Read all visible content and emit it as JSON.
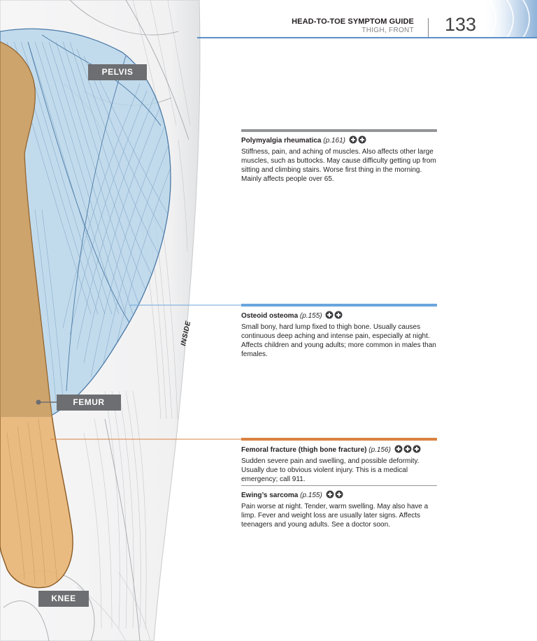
{
  "header": {
    "guide_title": "HEAD-TO-TOE SYMPTOM GUIDE",
    "section": "THIGH, FRONT",
    "page_number": "133"
  },
  "labels": {
    "pelvis": "PELVIS",
    "femur": "FEMUR",
    "knee": "KNEE",
    "inside": "INSIDE"
  },
  "colors": {
    "muscle_region": "#b8d6ea",
    "bone_region": "#e8b77a",
    "polymyalgia_bar": "#939598",
    "osteoid_bar": "#6aa6dc",
    "fracture_bar": "#d9813f",
    "header_rule": "#5b8fc6"
  },
  "entries": [
    {
      "title": "Polymyalgia rheumatica",
      "ref": "(p.161)",
      "urgency": 2,
      "text": "Stiffness, pain, and aching of muscles. Also affects other large muscles, such as buttocks. May cause difficulty getting up from sitting and climbing stairs. Worse first thing in the morning. Mainly affects people over 65."
    },
    {
      "title": "Osteoid osteoma",
      "ref": "(p.155)",
      "urgency": 2,
      "text": "Small bony, hard lump fixed to thigh bone. Usually causes continuous deep aching and intense pain, especially at night. Affects children and young adults; more common in males than females."
    },
    {
      "title": "Femoral fracture (thigh bone fracture)",
      "ref": "(p.156)",
      "urgency": 3,
      "text": "Sudden severe pain and swelling, and possible deformity. Usually due to obvious violent injury. This is a medical emergency; call 911."
    },
    {
      "title": "Ewing’s sarcoma",
      "ref": "(p.155)",
      "urgency": 2,
      "text": "Pain worse at night. Tender, warm swelling. May also have a limp. Fever and weight loss are usually later signs. Affects teenagers and young adults. See a doctor soon."
    }
  ]
}
